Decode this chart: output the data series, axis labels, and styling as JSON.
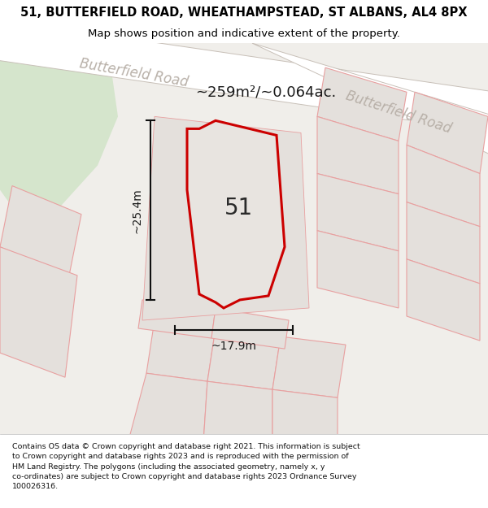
{
  "title": "51, BUTTERFIELD ROAD, WHEATHAMPSTEAD, ST ALBANS, AL4 8PX",
  "subtitle": "Map shows position and indicative extent of the property.",
  "footer_line1": "Contains OS data © Crown copyright and database right 2021. This information is subject",
  "footer_line2": "to Crown copyright and database rights 2023 and is reproduced with the permission of",
  "footer_line3": "HM Land Registry. The polygons (including the associated geometry, namely x, y",
  "footer_line4": "co-ordinates) are subject to Crown copyright and database rights 2023 Ordnance Survey",
  "footer_line5": "100026316.",
  "map_bg": "#f0eeea",
  "road_fill": "#ffffff",
  "road_edge": "#c8c0b8",
  "plot_fill": "#e4e0dc",
  "plot_edge": "#e8a0a0",
  "subject_fill": "#e8e4e0",
  "subject_edge": "#cc0000",
  "green_fill": "#d5e5cc",
  "road_text_color": "#b8b0a8",
  "area_text": "~259m²/~0.064ac.",
  "label_51": "51",
  "dim_width": "~17.9m",
  "dim_height": "~25.4m",
  "road1_label": "Butterfield Road",
  "road2_label": "Butterfield Road",
  "title_fontsize": 10.5,
  "subtitle_fontsize": 9.5,
  "footer_fontsize": 6.8
}
